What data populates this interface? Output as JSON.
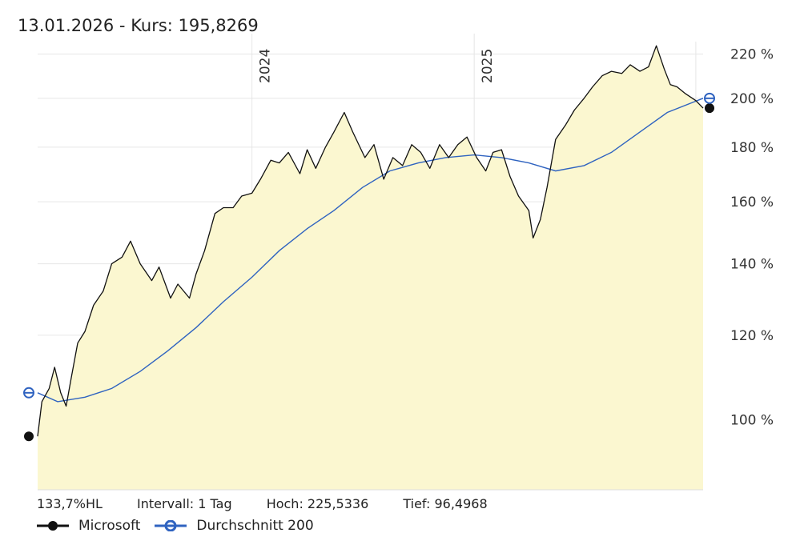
{
  "header": {
    "date": "13.01.2026",
    "separator": " - ",
    "price_label": "Kurs: 195,8269"
  },
  "stats": {
    "range": "133,7%HL",
    "interval": "Intervall: 1 Tag",
    "high": "Hoch: 225,5336",
    "low": "Tief: 96,4968"
  },
  "legend": [
    {
      "label": "Microsoft",
      "color": "#111111"
    },
    {
      "label": "Durchschnitt 200",
      "color": "#2f63c0"
    }
  ],
  "chart_data": {
    "type": "line",
    "title": "",
    "xlabel": "",
    "ylabel": "",
    "y_scale": "log",
    "y_ticks": [
      100,
      120,
      140,
      160,
      180,
      200,
      220
    ],
    "y_tick_labels": [
      "100 %",
      "120 %",
      "140 %",
      "160 %",
      "180 %",
      "200 %",
      "220 %"
    ],
    "x_tick_labels": [
      "2024",
      "2025"
    ],
    "x_ticks": [
      "2024-01-01",
      "2025-01-01"
    ],
    "xlim": [
      "2023-01-13",
      "2026-01-13"
    ],
    "ylim": [
      86,
      226
    ],
    "grid": true,
    "area_fill": "#fbf7d0",
    "series": [
      {
        "name": "Microsoft",
        "color": "#111111",
        "x": [
          "2023-01-13",
          "2023-01-20",
          "2023-02-01",
          "2023-02-10",
          "2023-02-20",
          "2023-03-01",
          "2023-03-10",
          "2023-03-20",
          "2023-04-01",
          "2023-04-15",
          "2023-05-01",
          "2023-05-15",
          "2023-06-01",
          "2023-06-15",
          "2023-07-01",
          "2023-07-20",
          "2023-08-01",
          "2023-08-20",
          "2023-09-01",
          "2023-09-20",
          "2023-10-01",
          "2023-10-15",
          "2023-11-01",
          "2023-11-15",
          "2023-12-01",
          "2023-12-15",
          "2024-01-01",
          "2024-01-15",
          "2024-02-01",
          "2024-02-15",
          "2024-03-01",
          "2024-03-20",
          "2024-04-01",
          "2024-04-15",
          "2024-05-01",
          "2024-05-15",
          "2024-06-01",
          "2024-06-15",
          "2024-07-05",
          "2024-07-20",
          "2024-08-05",
          "2024-08-20",
          "2024-09-05",
          "2024-09-20",
          "2024-10-05",
          "2024-10-20",
          "2024-11-05",
          "2024-11-20",
          "2024-12-05",
          "2024-12-20",
          "2025-01-05",
          "2025-01-20",
          "2025-02-01",
          "2025-02-15",
          "2025-03-01",
          "2025-03-15",
          "2025-04-01",
          "2025-04-08",
          "2025-04-20",
          "2025-05-01",
          "2025-05-15",
          "2025-06-01",
          "2025-06-15",
          "2025-07-01",
          "2025-07-15",
          "2025-07-31",
          "2025-08-15",
          "2025-09-01",
          "2025-09-15",
          "2025-10-01",
          "2025-10-15",
          "2025-10-28",
          "2025-11-10",
          "2025-11-20",
          "2025-12-01",
          "2025-12-15",
          "2026-01-01",
          "2026-01-13"
        ],
        "values": [
          96.5,
          104,
          107,
          112,
          106,
          103,
          110,
          118,
          121,
          128,
          132,
          140,
          142,
          147,
          140,
          135,
          139,
          130,
          134,
          130,
          137,
          144,
          156,
          158,
          158,
          162,
          163,
          168,
          175,
          174,
          178,
          170,
          179,
          172,
          180,
          186,
          194,
          186,
          176,
          181,
          168,
          176,
          173,
          181,
          178,
          172,
          181,
          176,
          181,
          184,
          176,
          171,
          178,
          179,
          169,
          162,
          157,
          148,
          154,
          165,
          183,
          189,
          195,
          200,
          205,
          210,
          212,
          211,
          215,
          212,
          214,
          224,
          213,
          206,
          205,
          202,
          199,
          195.8
        ]
      },
      {
        "name": "Durchschnitt 200",
        "color": "#2f63c0",
        "x": [
          "2023-01-13",
          "2023-02-15",
          "2023-04-01",
          "2023-05-15",
          "2023-07-01",
          "2023-08-15",
          "2023-10-01",
          "2023-11-15",
          "2024-01-01",
          "2024-02-15",
          "2024-04-01",
          "2024-05-15",
          "2024-07-01",
          "2024-08-15",
          "2024-10-01",
          "2024-11-15",
          "2025-01-01",
          "2025-02-15",
          "2025-04-01",
          "2025-05-15",
          "2025-07-01",
          "2025-08-15",
          "2025-10-01",
          "2025-11-15",
          "2026-01-13"
        ],
        "values": [
          106,
          104,
          105,
          107,
          111,
          116,
          122,
          129,
          136,
          144,
          151,
          157,
          165,
          171,
          174,
          176,
          177,
          176,
          174,
          171,
          173,
          178,
          186,
          194,
          200
        ]
      }
    ]
  }
}
